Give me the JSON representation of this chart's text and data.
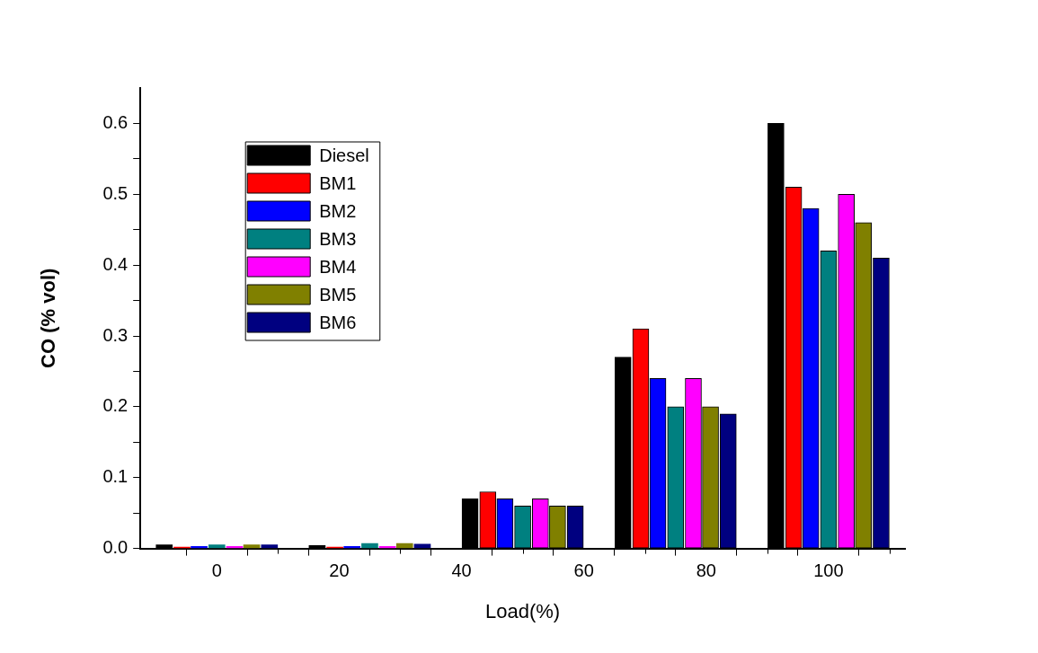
{
  "chart_data": {
    "type": "bar",
    "xlabel": "Load(%)",
    "ylabel": "CO (% vol)",
    "xlim": [
      -12.5,
      112.5
    ],
    "xticks": [
      0,
      {
        "value": 10,
        "label": null
      },
      20,
      {
        "value": 30,
        "label": null
      },
      40,
      {
        "value": 50,
        "label": null
      },
      60,
      {
        "value": 70,
        "label": null
      },
      80,
      {
        "value": 90,
        "label": null
      },
      100,
      {
        "value": 110,
        "label": null
      }
    ],
    "ylim": [
      0,
      0.65
    ],
    "yticks": [
      {
        "value": 0,
        "label": "0.0"
      },
      {
        "value": 0.05,
        "label": null
      },
      0.1,
      {
        "value": 0.15,
        "label": null
      },
      0.2,
      {
        "value": 0.25,
        "label": null
      },
      0.3,
      {
        "value": 0.35,
        "label": null
      },
      0.4,
      {
        "value": 0.45,
        "label": null
      },
      0.5,
      {
        "value": 0.55,
        "label": null
      },
      0.6
    ],
    "grid": false,
    "legend": "top left",
    "series": [
      {
        "name": "Diesel",
        "color": "#000000",
        "x": [
          -8.6,
          16.4,
          41.4,
          66.4,
          91.4
        ],
        "values": [
          0.005,
          0.004,
          0.07,
          0.27,
          0.6
        ]
      },
      {
        "name": "BM1",
        "color": "#ff0000",
        "x": [
          -5.7,
          19.3,
          44.3,
          69.3,
          94.3
        ],
        "values": [
          0.002,
          0.002,
          0.08,
          0.31,
          0.51
        ]
      },
      {
        "name": "BM2",
        "color": "#0000ff",
        "x": [
          -2.9,
          22.1,
          47.1,
          72.1,
          97.1
        ],
        "values": [
          0.003,
          0.003,
          0.07,
          0.24,
          0.48
        ]
      },
      {
        "name": "BM3",
        "color": "#008080",
        "x": [
          0,
          25,
          50,
          75,
          100
        ],
        "values": [
          0.005,
          0.007,
          0.06,
          0.2,
          0.42
        ]
      },
      {
        "name": "BM4",
        "color": "#ff00ff",
        "x": [
          2.9,
          27.9,
          52.9,
          77.9,
          102.9
        ],
        "values": [
          0.003,
          0.003,
          0.07,
          0.24,
          0.5
        ]
      },
      {
        "name": "BM5",
        "color": "#808000",
        "x": [
          5.7,
          30.7,
          55.7,
          80.7,
          105.7
        ],
        "values": [
          0.005,
          0.007,
          0.06,
          0.2,
          0.46
        ]
      },
      {
        "name": "BM6",
        "color": "#000080",
        "x": [
          8.6,
          33.6,
          58.6,
          83.6,
          108.6
        ],
        "values": [
          0.005,
          0.006,
          0.06,
          0.19,
          0.41
        ]
      }
    ]
  }
}
